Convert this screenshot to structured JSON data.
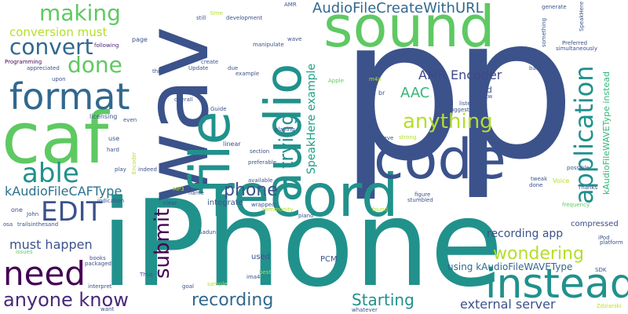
{
  "words": [
    {
      "text": "p",
      "color": "#3b528b"
    },
    {
      "text": "p",
      "color": "#3b528b"
    },
    {
      "text": "iPhone",
      "color": "#21918c"
    },
    {
      "text": "record",
      "color": "#21918c"
    },
    {
      "text": "sound",
      "color": "#5ec962"
    },
    {
      "text": "wav",
      "color": "#3b528b"
    },
    {
      "text": "caf",
      "color": "#5ec962"
    },
    {
      "text": "file",
      "color": "#21918c"
    },
    {
      "text": "audio",
      "color": "#21918c"
    },
    {
      "text": "code",
      "color": "#3b528b"
    },
    {
      "text": "format",
      "color": "#31688e"
    },
    {
      "text": "instead",
      "color": "#21918c"
    },
    {
      "text": "need",
      "color": "#440154"
    },
    {
      "text": "EDIT",
      "color": "#3b528b"
    },
    {
      "text": "able",
      "color": "#21918c"
    },
    {
      "text": "making",
      "color": "#5ec962"
    },
    {
      "text": "convert",
      "color": "#31688e"
    },
    {
      "text": "done",
      "color": "#5ec962"
    },
    {
      "text": "application",
      "color": "#21918c"
    },
    {
      "text": "anything",
      "color": "#b5de2b"
    },
    {
      "text": "phone",
      "color": "#3b528b"
    },
    {
      "text": "AudioFileCreateWithURL",
      "color": "#31688e"
    },
    {
      "text": "conversion must",
      "color": "#b5de2b"
    },
    {
      "text": "AMR Encoder",
      "color": "#3e4989"
    },
    {
      "text": "AAC",
      "color": "#35b779"
    },
    {
      "text": "trying",
      "color": "#21918c"
    },
    {
      "text": "kAudioFileCAFType",
      "color": "#2c728e"
    },
    {
      "text": "wondering",
      "color": "#b5de2b"
    },
    {
      "text": "submit",
      "color": "#440154"
    },
    {
      "text": "recording app",
      "color": "#3b528b"
    },
    {
      "text": "must happen",
      "color": "#3b528b"
    },
    {
      "text": "anyone know",
      "color": "#482878"
    },
    {
      "text": "recording",
      "color": "#31688e"
    },
    {
      "text": "Starting",
      "color": "#21918c"
    },
    {
      "text": "external server",
      "color": "#3b528b"
    },
    {
      "text": "using kAudioFileWAVEType",
      "color": "#31688e"
    },
    {
      "text": "SpeakHere example",
      "color": "#1f9e89"
    },
    {
      "text": "kAudioFileWAVEType instead",
      "color": "#35b779"
    },
    {
      "text": "integrate",
      "color": "#3b528b"
    },
    {
      "text": "compressed",
      "color": "#3e4989"
    },
    {
      "text": "PCM",
      "color": "#3b528b"
    },
    {
      "text": "used",
      "color": "#3b528b"
    },
    {
      "text": "Programming",
      "color": "#440154"
    },
    {
      "text": "appreciated",
      "color": "#3b528b"
    },
    {
      "text": "following",
      "color": "#482878"
    },
    {
      "text": "page",
      "color": "#3b528b"
    },
    {
      "text": "time",
      "color": "#b5de2b"
    },
    {
      "text": "still",
      "color": "#3b528b"
    },
    {
      "text": "development",
      "color": "#3b528b"
    },
    {
      "text": "manipulate",
      "color": "#3b528b"
    },
    {
      "text": "generate",
      "color": "#3b528b"
    },
    {
      "text": "Preferred",
      "color": "#3b528b"
    },
    {
      "text": "simultaneously",
      "color": "#3b528b"
    },
    {
      "text": "licensing",
      "color": "#3b528b"
    },
    {
      "text": "Thanks",
      "color": "#3b528b"
    },
    {
      "text": "possible",
      "color": "#3b528b"
    },
    {
      "text": "frequency",
      "color": "#5ec962"
    },
    {
      "text": "Voice",
      "color": "#b5de2b"
    },
    {
      "text": "trailsinthesand",
      "color": "#3b528b"
    },
    {
      "text": "Sadun",
      "color": "#3b528b"
    },
    {
      "text": "Update",
      "color": "#3b528b"
    },
    {
      "text": "example",
      "color": "#3b528b"
    },
    {
      "text": "create",
      "color": "#3b528b"
    },
    {
      "text": "upon",
      "color": "#3b528b"
    },
    {
      "text": "due",
      "color": "#3b528b"
    },
    {
      "text": "think",
      "color": "#3b528b"
    },
    {
      "text": "overall",
      "color": "#3b528b"
    },
    {
      "text": "Guide",
      "color": "#3b528b"
    },
    {
      "text": "even",
      "color": "#3b528b"
    },
    {
      "text": "playing",
      "color": "#3b528b"
    },
    {
      "text": "section",
      "color": "#3b528b"
    },
    {
      "text": "linear",
      "color": "#3b528b"
    },
    {
      "text": "preferable",
      "color": "#3b528b"
    },
    {
      "text": "strong",
      "color": "#b5de2b"
    },
    {
      "text": "achieve",
      "color": "#3b528b"
    },
    {
      "text": "figure",
      "color": "#3b528b"
    },
    {
      "text": "stumbled",
      "color": "#3b528b"
    },
    {
      "text": "found",
      "color": "#b5de2b"
    },
    {
      "text": "piano",
      "color": "#3b528b"
    },
    {
      "text": "wrapped",
      "color": "#3b528b"
    },
    {
      "text": "community",
      "color": "#b5de2b"
    },
    {
      "text": "available",
      "color": "#3b528b"
    },
    {
      "text": "indication",
      "color": "#3b528b"
    },
    {
      "text": "indeed",
      "color": "#3b528b"
    },
    {
      "text": "clear",
      "color": "#3b528b"
    },
    {
      "text": "name",
      "color": "#3b528b"
    },
    {
      "text": "MP3",
      "color": "#b5de2b"
    },
    {
      "text": "one",
      "color": "#3b528b"
    },
    {
      "text": "John",
      "color": "#3b528b"
    },
    {
      "text": "packaged",
      "color": "#3b528b"
    },
    {
      "text": "books",
      "color": "#3b528b"
    },
    {
      "text": "interpret",
      "color": "#3b528b"
    },
    {
      "text": "Thus",
      "color": "#3b528b"
    },
    {
      "text": "ima4",
      "color": "#3b528b"
    },
    {
      "text": "goal",
      "color": "#3b528b"
    },
    {
      "text": "sample",
      "color": "#b5de2b"
    },
    {
      "text": "best",
      "color": "#b5de2b"
    },
    {
      "text": "whatever",
      "color": "#3b528b"
    },
    {
      "text": "tone",
      "color": "#3b528b"
    },
    {
      "text": "basic",
      "color": "#3b528b"
    },
    {
      "text": "m4a",
      "color": "#b5de2b"
    },
    {
      "text": "br",
      "color": "#3b528b"
    },
    {
      "text": "Apple",
      "color": "#5ec962"
    },
    {
      "text": "listed",
      "color": "#3b528b"
    },
    {
      "text": "suggestions",
      "color": "#3b528b"
    },
    {
      "text": "Btw",
      "color": "#3b528b"
    },
    {
      "text": "iPod",
      "color": "#3b528b"
    },
    {
      "text": "SDK",
      "color": "#3b528b"
    },
    {
      "text": "platform",
      "color": "#3b528b"
    },
    {
      "text": "Zdziarski",
      "color": "#b5de2b"
    },
    {
      "text": "want",
      "color": "#3b528b"
    },
    {
      "text": "issues",
      "color": "#5ec962"
    },
    {
      "text": "osa",
      "color": "#3b528b"
    },
    {
      "text": "hard",
      "color": "#3b528b"
    },
    {
      "text": "play",
      "color": "#3b528b"
    },
    {
      "text": "use",
      "color": "#3b528b"
    },
    {
      "text": "tweak",
      "color": "#3b528b"
    },
    {
      "text": "done",
      "color": "#3b528b"
    },
    {
      "text": "exist",
      "color": "#3b528b"
    },
    {
      "text": "wave",
      "color": "#3b528b"
    },
    {
      "text": "AMR",
      "color": "#3b528b"
    },
    {
      "text": "something",
      "color": "#3b528b"
    },
    {
      "text": "SpeakHere",
      "color": "#3b528b"
    },
    {
      "text": "find",
      "color": "#3b528b"
    },
    {
      "text": "Encoder",
      "color": "#b5de2b"
    }
  ]
}
